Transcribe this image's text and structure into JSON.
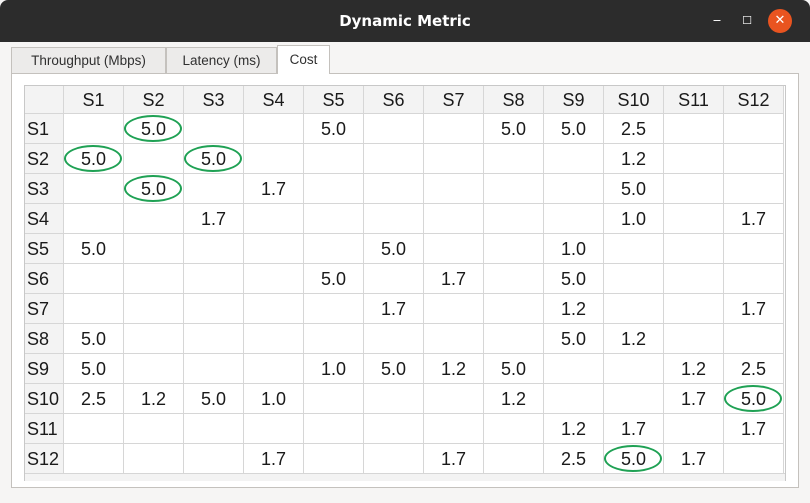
{
  "window": {
    "title": "Dynamic Metric",
    "minimize_glyph": "‒",
    "maximize_glyph": "☐",
    "close_glyph": "✕"
  },
  "tabs": [
    {
      "label": "Throughput (Mbps)",
      "active": false
    },
    {
      "label": "Latency (ms)",
      "active": false
    },
    {
      "label": "Cost",
      "active": true
    }
  ],
  "highlight_color": "#1fa154",
  "matrix": {
    "columns": [
      "S1",
      "S2",
      "S3",
      "S4",
      "S5",
      "S6",
      "S7",
      "S8",
      "S9",
      "S10",
      "S11",
      "S12"
    ],
    "rows": [
      {
        "label": "S1",
        "cells": [
          "",
          "5.0",
          "",
          "",
          "5.0",
          "",
          "",
          "5.0",
          "5.0",
          "2.5",
          "",
          ""
        ]
      },
      {
        "label": "S2",
        "cells": [
          "5.0",
          "",
          "5.0",
          "",
          "",
          "",
          "",
          "",
          "",
          "1.2",
          "",
          ""
        ]
      },
      {
        "label": "S3",
        "cells": [
          "",
          "5.0",
          "",
          "1.7",
          "",
          "",
          "",
          "",
          "",
          "5.0",
          "",
          ""
        ]
      },
      {
        "label": "S4",
        "cells": [
          "",
          "",
          "1.7",
          "",
          "",
          "",
          "",
          "",
          "",
          "1.0",
          "",
          "1.7"
        ]
      },
      {
        "label": "S5",
        "cells": [
          "5.0",
          "",
          "",
          "",
          "",
          "5.0",
          "",
          "",
          "1.0",
          "",
          "",
          ""
        ]
      },
      {
        "label": "S6",
        "cells": [
          "",
          "",
          "",
          "",
          "5.0",
          "",
          "1.7",
          "",
          "5.0",
          "",
          "",
          ""
        ]
      },
      {
        "label": "S7",
        "cells": [
          "",
          "",
          "",
          "",
          "",
          "1.7",
          "",
          "",
          "1.2",
          "",
          "",
          "1.7"
        ]
      },
      {
        "label": "S8",
        "cells": [
          "5.0",
          "",
          "",
          "",
          "",
          "",
          "",
          "",
          "5.0",
          "1.2",
          "",
          ""
        ]
      },
      {
        "label": "S9",
        "cells": [
          "5.0",
          "",
          "",
          "",
          "1.0",
          "5.0",
          "1.2",
          "5.0",
          "",
          "",
          "1.2",
          "2.5"
        ]
      },
      {
        "label": "S10",
        "cells": [
          "2.5",
          "1.2",
          "5.0",
          "1.0",
          "",
          "",
          "",
          "1.2",
          "",
          "",
          "1.7",
          "5.0"
        ]
      },
      {
        "label": "S11",
        "cells": [
          "",
          "",
          "",
          "",
          "",
          "",
          "",
          "",
          "1.2",
          "1.7",
          "",
          "1.7"
        ]
      },
      {
        "label": "S12",
        "cells": [
          "",
          "",
          "",
          "1.7",
          "",
          "",
          "1.7",
          "",
          "2.5",
          "5.0",
          "1.7",
          ""
        ]
      }
    ],
    "highlighted": [
      [
        "S1",
        "S2"
      ],
      [
        "S2",
        "S1"
      ],
      [
        "S2",
        "S3"
      ],
      [
        "S3",
        "S2"
      ],
      [
        "S10",
        "S12"
      ],
      [
        "S12",
        "S10"
      ]
    ]
  }
}
